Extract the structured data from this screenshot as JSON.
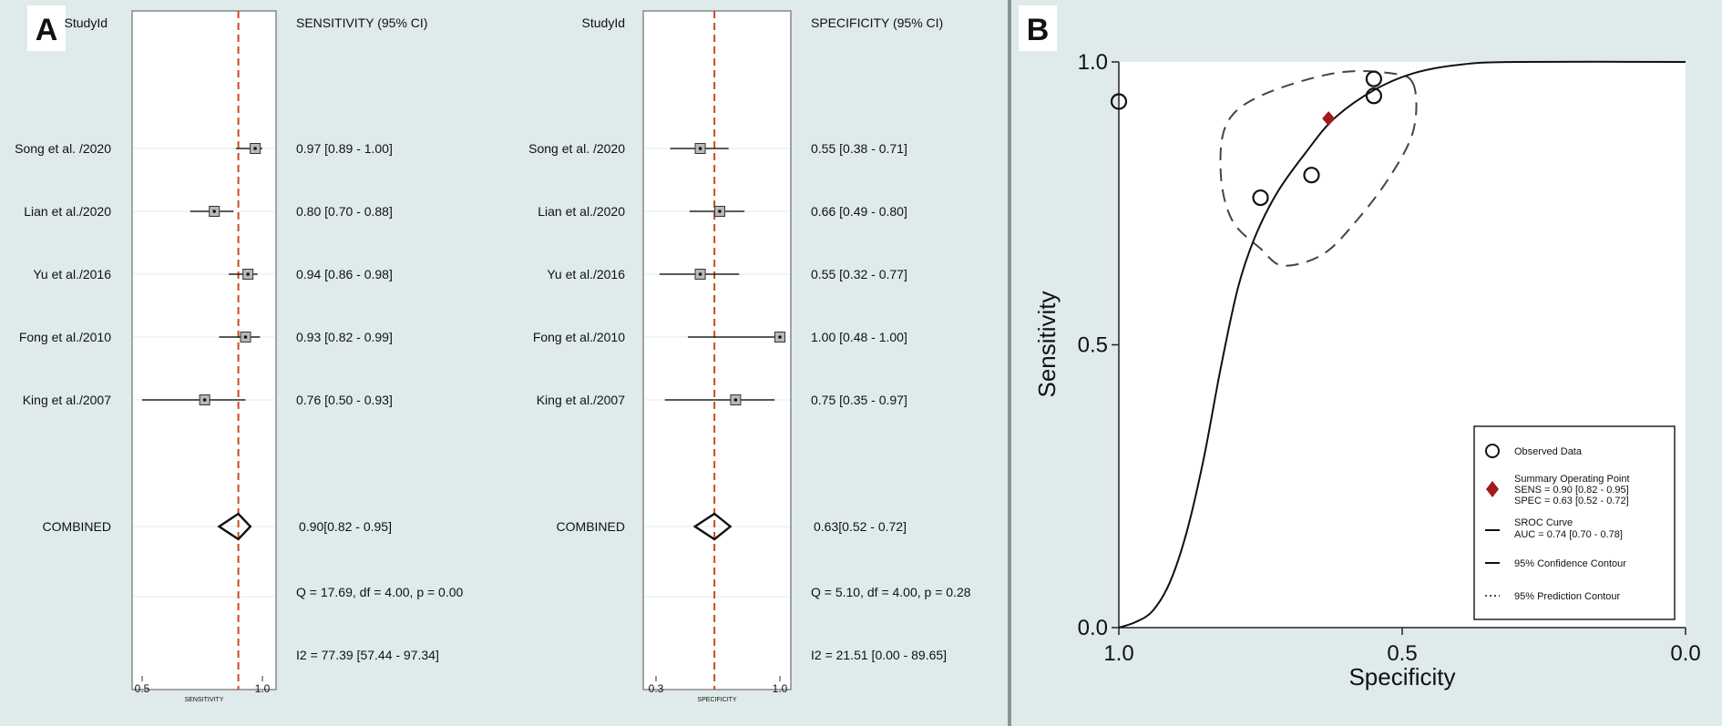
{
  "panels": {
    "a": {
      "letter": "A"
    },
    "b": {
      "letter": "B"
    }
  },
  "colors": {
    "background": "#dfeaea",
    "reference_line": "#cc4a1c",
    "summary_point": "#a0191e",
    "ink": "#111111",
    "plot_bg": "#ffffff"
  },
  "chart_data": [
    {
      "type": "forest",
      "column_header_study": "StudyId",
      "column_header_estimate": "SENSITIVITY (95% CI)",
      "xlabel": "SENSITIVITY",
      "xticks": [
        "0.5",
        "1.0"
      ],
      "xlim": [
        0.5,
        1.0
      ],
      "reference_line": 0.9,
      "studies": [
        {
          "name": "Song et al. /2020",
          "est": 0.97,
          "lo": 0.89,
          "hi": 1.0,
          "label": "0.97 [0.89 - 1.00]"
        },
        {
          "name": "Lian et al./2020",
          "est": 0.8,
          "lo": 0.7,
          "hi": 0.88,
          "label": "0.80 [0.70 - 0.88]"
        },
        {
          "name": "Yu et al./2016",
          "est": 0.94,
          "lo": 0.86,
          "hi": 0.98,
          "label": "0.94 [0.86 - 0.98]"
        },
        {
          "name": "Fong et al./2010",
          "est": 0.93,
          "lo": 0.82,
          "hi": 0.99,
          "label": "0.93 [0.82 - 0.99]"
        },
        {
          "name": "King et al./2007",
          "est": 0.76,
          "lo": 0.5,
          "hi": 0.93,
          "label": "0.76 [0.50 - 0.93]"
        }
      ],
      "combined": {
        "name": "COMBINED",
        "est": 0.9,
        "lo": 0.82,
        "hi": 0.95,
        "label": "0.90[0.82 - 0.95]"
      },
      "heterogeneity_q": "Q = 17.69, df = 4.00, p = 0.00",
      "heterogeneity_i2": "I2 = 77.39 [57.44 - 97.34]"
    },
    {
      "type": "forest",
      "column_header_study": "StudyId",
      "column_header_estimate": "SPECIFICITY (95% CI)",
      "xlabel": "SPECIFICITY",
      "xticks": [
        "0.3",
        "1.0"
      ],
      "xlim": [
        0.3,
        1.0
      ],
      "reference_line": 0.63,
      "studies": [
        {
          "name": "Song et al. /2020",
          "est": 0.55,
          "lo": 0.38,
          "hi": 0.71,
          "label": "0.55 [0.38 - 0.71]"
        },
        {
          "name": "Lian et al./2020",
          "est": 0.66,
          "lo": 0.49,
          "hi": 0.8,
          "label": "0.66 [0.49 - 0.80]"
        },
        {
          "name": "Yu et al./2016",
          "est": 0.55,
          "lo": 0.32,
          "hi": 0.77,
          "label": "0.55 [0.32 - 0.77]"
        },
        {
          "name": "Fong et al./2010",
          "est": 1.0,
          "lo": 0.48,
          "hi": 1.0,
          "label": "1.00 [0.48 - 1.00]"
        },
        {
          "name": "King et al./2007",
          "est": 0.75,
          "lo": 0.35,
          "hi": 0.97,
          "label": "0.75 [0.35 - 0.97]"
        }
      ],
      "combined": {
        "name": "COMBINED",
        "est": 0.63,
        "lo": 0.52,
        "hi": 0.72,
        "label": "0.63[0.52 - 0.72]"
      },
      "heterogeneity_q": "Q = 5.10, df = 4.00, p = 0.28",
      "heterogeneity_i2": "I2 = 21.51 [0.00 - 89.65]"
    },
    {
      "type": "scatter",
      "xlabel": "Specificity",
      "ylabel": "Sensitivity",
      "xlim": [
        1.0,
        0.0
      ],
      "ylim": [
        0.0,
        1.0
      ],
      "xticks": [
        "1.0",
        "0.5",
        "0.0"
      ],
      "yticks": [
        "0.0",
        "0.5",
        "1.0"
      ],
      "observed": [
        {
          "spec": 1.0,
          "sens": 0.93
        },
        {
          "spec": 0.55,
          "sens": 0.97
        },
        {
          "spec": 0.55,
          "sens": 0.94
        },
        {
          "spec": 0.75,
          "sens": 0.76
        },
        {
          "spec": 0.66,
          "sens": 0.8
        }
      ],
      "summary_point": {
        "spec": 0.63,
        "sens": 0.9
      },
      "confidence_contour": [
        [
          0.48,
          0.96
        ],
        [
          0.52,
          0.98
        ],
        [
          0.62,
          0.98
        ],
        [
          0.75,
          0.94
        ],
        [
          0.81,
          0.89
        ],
        [
          0.82,
          0.8
        ],
        [
          0.8,
          0.72
        ],
        [
          0.75,
          0.67
        ],
        [
          0.71,
          0.64
        ],
        [
          0.64,
          0.66
        ],
        [
          0.58,
          0.72
        ],
        [
          0.52,
          0.8
        ],
        [
          0.48,
          0.88
        ],
        [
          0.48,
          0.96
        ]
      ],
      "sroc_curve": [
        [
          1.0,
          0.0
        ],
        [
          0.97,
          0.01
        ],
        [
          0.94,
          0.03
        ],
        [
          0.91,
          0.08
        ],
        [
          0.88,
          0.17
        ],
        [
          0.85,
          0.3
        ],
        [
          0.82,
          0.46
        ],
        [
          0.79,
          0.6
        ],
        [
          0.76,
          0.69
        ],
        [
          0.72,
          0.77
        ],
        [
          0.67,
          0.84
        ],
        [
          0.62,
          0.9
        ],
        [
          0.55,
          0.95
        ],
        [
          0.48,
          0.98
        ],
        [
          0.4,
          0.995
        ],
        [
          0.3,
          1.0
        ],
        [
          0.0,
          1.0
        ]
      ],
      "legend": {
        "position": "bottom-right",
        "items": [
          {
            "symbol": "circle",
            "lines": [
              "Observed Data"
            ]
          },
          {
            "symbol": "diamond",
            "lines": [
              "Summary Operating Point",
              "SENS = 0.90 [0.82 - 0.95]",
              "SPEC = 0.63 [0.52 - 0.72]"
            ]
          },
          {
            "symbol": "solid",
            "lines": [
              "SROC Curve",
              "AUC = 0.74 [0.70 - 0.78]"
            ]
          },
          {
            "symbol": "dashed",
            "lines": [
              "95% Confidence Contour"
            ]
          },
          {
            "symbol": "dotted",
            "lines": [
              "95% Prediction Contour"
            ]
          }
        ]
      }
    }
  ]
}
